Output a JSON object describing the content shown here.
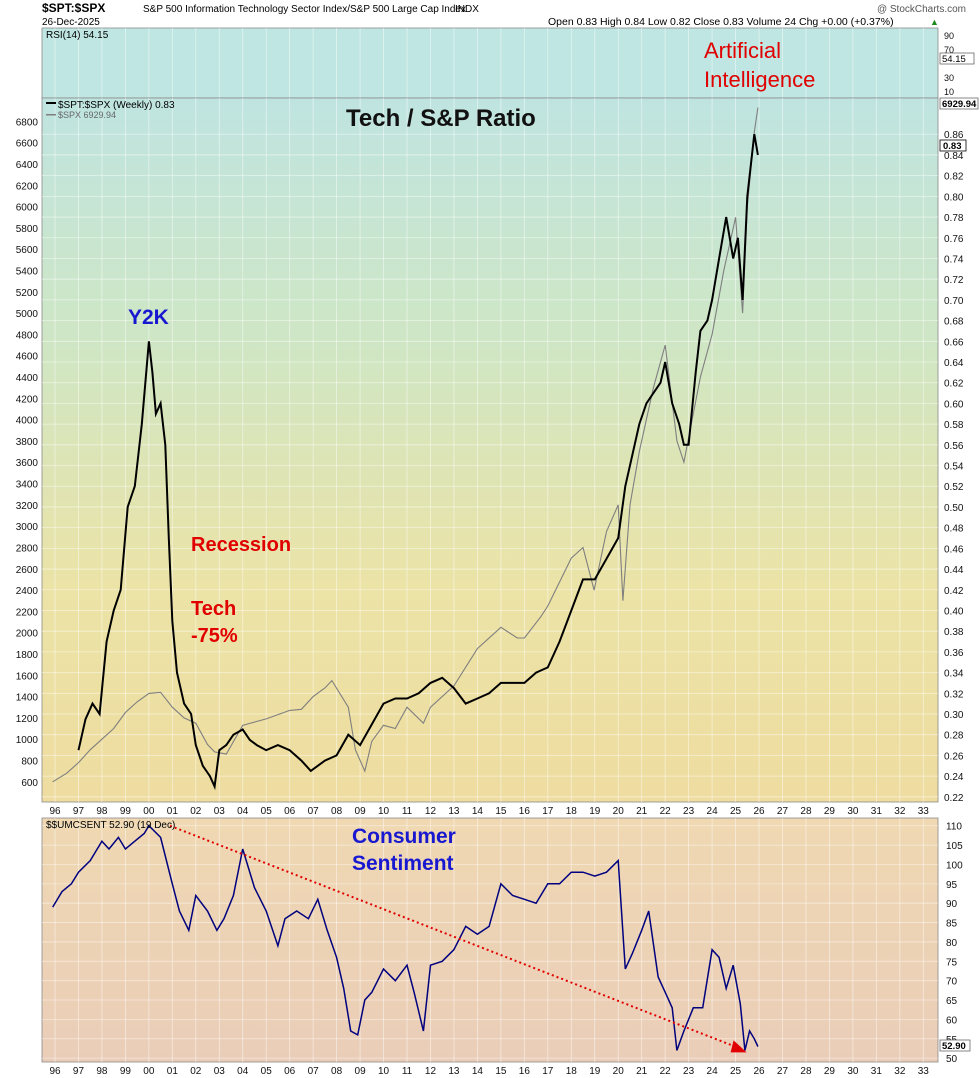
{
  "header": {
    "symbol": "$SPT:$SPX",
    "description": "S&P 500 Information Technology Sector Index/S&P 500 Large Cap Index",
    "exchange": "INDX",
    "date": "26-Dec-2025",
    "quote": "Open 0.83  High 0.84  Low 0.82  Close 0.83  Volume 24  Chg +0.00 (+0.37%)",
    "quote_arrow": "▲",
    "watermark": "@ StockCharts.com"
  },
  "colors": {
    "ratio_line": "#000000",
    "spx_line": "#7f7f7f",
    "sentiment_line": "#00007f",
    "trend_line": "#e00000",
    "annotation_red": "#e00000",
    "annotation_blue": "#1818d0"
  },
  "annotations": {
    "title": "Tech / S&P Ratio",
    "y2k": "Y2K",
    "recession": "Recession",
    "tech_line1": "Tech",
    "tech_line2": "-75%",
    "ai_line1": "Artificial",
    "ai_line2": "Intelligence",
    "sentiment_line1": "Consumer",
    "sentiment_line2": "Sentiment"
  },
  "x_axis": {
    "tick_labels": [
      "96",
      "97",
      "98",
      "99",
      "00",
      "01",
      "02",
      "03",
      "04",
      "05",
      "06",
      "07",
      "08",
      "09",
      "10",
      "11",
      "12",
      "13",
      "14",
      "15",
      "16",
      "17",
      "18",
      "19",
      "20",
      "21",
      "22",
      "23",
      "24",
      "25",
      "26",
      "27",
      "28",
      "29",
      "30",
      "31",
      "32",
      "33"
    ]
  },
  "chart_data": [
    {
      "type": "line",
      "panel": "rsi",
      "legend": "RSI(14) 54.15",
      "last_value_label": "54.15",
      "ylim": [
        0,
        100
      ],
      "right_tick_labels": [
        "90",
        "70",
        "30",
        "10"
      ]
    },
    {
      "type": "line",
      "panel": "main",
      "title": "Tech / S&P Ratio",
      "legend": [
        "$SPT:$SPX (Weekly) 0.83",
        "$SPX 6929.94"
      ],
      "right_axis": {
        "ylim": [
          0.215,
          0.895
        ],
        "tick_labels": [
          "0.86",
          "0.84",
          "0.82",
          "0.80",
          "0.78",
          "0.76",
          "0.74",
          "0.72",
          "0.70",
          "0.68",
          "0.66",
          "0.64",
          "0.62",
          "0.60",
          "0.58",
          "0.56",
          "0.54",
          "0.52",
          "0.50",
          "0.48",
          "0.46",
          "0.44",
          "0.42",
          "0.40",
          "0.38",
          "0.36",
          "0.34",
          "0.32",
          "0.30",
          "0.28",
          "0.26",
          "0.24",
          "0.22"
        ],
        "last_value_label": "0.83"
      },
      "left_axis": {
        "ylim": [
          410,
          7020
        ],
        "tick_labels": [
          "6800",
          "6600",
          "6400",
          "6200",
          "6000",
          "5800",
          "5600",
          "5400",
          "5200",
          "5000",
          "4800",
          "4600",
          "4400",
          "4200",
          "4000",
          "3800",
          "3600",
          "3400",
          "3200",
          "3000",
          "2800",
          "2600",
          "2400",
          "2200",
          "2000",
          "1800",
          "1600",
          "1400",
          "1200",
          "1000",
          "800",
          "600"
        ],
        "last_value_label": "6929.94"
      },
      "series": [
        {
          "name": "$SPT:$SPX (Weekly) 0.83",
          "axis": "right",
          "x": [
            1997.0,
            1997.3,
            1997.6,
            1997.9,
            1998.2,
            1998.5,
            1998.8,
            1999.1,
            1999.4,
            1999.7,
            2000.0,
            2000.15,
            2000.3,
            2000.5,
            2000.7,
            2000.85,
            2001.0,
            2001.2,
            2001.5,
            2001.8,
            2002.0,
            2002.3,
            2002.6,
            2002.8,
            2003.0,
            2003.3,
            2003.6,
            2004.0,
            2004.3,
            2004.6,
            2005.0,
            2005.5,
            2006.0,
            2006.5,
            2006.9,
            2007.5,
            2008.0,
            2008.5,
            2009.0,
            2009.5,
            2010.0,
            2010.5,
            2011.0,
            2011.5,
            2012.0,
            2012.5,
            2013.0,
            2013.5,
            2014.0,
            2014.5,
            2015.0,
            2015.5,
            2016.0,
            2016.5,
            2017.0,
            2017.5,
            2018.0,
            2018.5,
            2019.0,
            2019.5,
            2020.0,
            2020.3,
            2020.6,
            2020.9,
            2021.2,
            2021.5,
            2021.8,
            2022.0,
            2022.3,
            2022.6,
            2022.8,
            2023.0,
            2023.3,
            2023.5,
            2023.8,
            2024.0,
            2024.3,
            2024.6,
            2024.9,
            2025.1,
            2025.3,
            2025.5,
            2025.8,
            2025.95
          ],
          "values": [
            0.265,
            0.295,
            0.31,
            0.3,
            0.37,
            0.4,
            0.42,
            0.5,
            0.52,
            0.58,
            0.66,
            0.63,
            0.59,
            0.6,
            0.56,
            0.47,
            0.39,
            0.34,
            0.31,
            0.3,
            0.27,
            0.25,
            0.24,
            0.23,
            0.265,
            0.27,
            0.28,
            0.285,
            0.275,
            0.27,
            0.265,
            0.27,
            0.265,
            0.255,
            0.245,
            0.255,
            0.26,
            0.28,
            0.27,
            0.29,
            0.31,
            0.315,
            0.315,
            0.32,
            0.33,
            0.335,
            0.325,
            0.31,
            0.315,
            0.32,
            0.33,
            0.33,
            0.33,
            0.34,
            0.345,
            0.37,
            0.4,
            0.43,
            0.43,
            0.45,
            0.47,
            0.52,
            0.55,
            0.58,
            0.6,
            0.61,
            0.62,
            0.64,
            0.6,
            0.58,
            0.56,
            0.56,
            0.63,
            0.67,
            0.68,
            0.7,
            0.74,
            0.78,
            0.74,
            0.76,
            0.7,
            0.8,
            0.86,
            0.84
          ]
        },
        {
          "name": "$SPX 6929.94",
          "axis": "left",
          "x": [
            1995.9,
            1996.5,
            1997.0,
            1997.5,
            1998.0,
            1998.5,
            1999.0,
            1999.5,
            2000.0,
            2000.5,
            2001.0,
            2001.5,
            2002.0,
            2002.5,
            2002.8,
            2003.3,
            2004.0,
            2005.0,
            2006.0,
            2006.5,
            2007.0,
            2007.5,
            2007.8,
            2008.5,
            2008.8,
            2009.2,
            2009.5,
            2010.0,
            2010.5,
            2011.0,
            2011.7,
            2012.0,
            2013.0,
            2014.0,
            2015.0,
            2015.7,
            2016.0,
            2016.7,
            2017.0,
            2018.0,
            2018.5,
            2018.97,
            2019.5,
            2020.0,
            2020.2,
            2020.5,
            2020.9,
            2021.5,
            2022.0,
            2022.5,
            2022.8,
            2023.5,
            2024.0,
            2024.5,
            2025.0,
            2025.3,
            2025.5,
            2025.8,
            2025.95
          ],
          "values": [
            600,
            680,
            780,
            900,
            1000,
            1100,
            1250,
            1350,
            1430,
            1440,
            1300,
            1200,
            1150,
            950,
            880,
            860,
            1130,
            1190,
            1270,
            1280,
            1400,
            1480,
            1550,
            1300,
            900,
            700,
            980,
            1130,
            1100,
            1300,
            1150,
            1300,
            1500,
            1850,
            2050,
            1950,
            1950,
            2150,
            2250,
            2700,
            2800,
            2400,
            2950,
            3200,
            2300,
            3200,
            3700,
            4300,
            4700,
            3800,
            3600,
            4400,
            4800,
            5400,
            5900,
            5000,
            6000,
            6700,
            6930
          ]
        }
      ]
    },
    {
      "type": "line",
      "panel": "sentiment",
      "legend": "$$UMCSENT 52.90 (19 Dec)",
      "last_value_label": "52.90",
      "ylim": [
        49,
        112
      ],
      "right_tick_labels": [
        "110",
        "105",
        "100",
        "95",
        "90",
        "85",
        "80",
        "75",
        "70",
        "65",
        "60",
        "55",
        "50"
      ],
      "series": [
        {
          "name": "$$UMCSENT 52.90 (19 Dec)",
          "x": [
            1995.9,
            1996.3,
            1996.7,
            1997.0,
            1997.5,
            1998.0,
            1998.3,
            1998.7,
            1999.0,
            1999.4,
            1999.8,
            2000.0,
            2000.5,
            2001.0,
            2001.3,
            2001.7,
            2002.0,
            2002.5,
            2002.9,
            2003.2,
            2003.6,
            2004.0,
            2004.5,
            2005.0,
            2005.5,
            2005.8,
            2006.3,
            2006.8,
            2007.2,
            2007.6,
            2008.0,
            2008.3,
            2008.6,
            2008.9,
            2009.2,
            2009.5,
            2010.0,
            2010.5,
            2011.0,
            2011.3,
            2011.7,
            2012.0,
            2012.5,
            2013.0,
            2013.5,
            2014.0,
            2014.5,
            2015.0,
            2015.5,
            2016.0,
            2016.5,
            2017.0,
            2017.5,
            2018.0,
            2018.5,
            2019.0,
            2019.5,
            2020.0,
            2020.3,
            2020.6,
            2021.0,
            2021.3,
            2021.7,
            2022.0,
            2022.3,
            2022.5,
            2022.8,
            2023.2,
            2023.6,
            2024.0,
            2024.3,
            2024.6,
            2024.9,
            2025.2,
            2025.4,
            2025.6,
            2025.8,
            2025.95
          ],
          "values": [
            89,
            93,
            95,
            98,
            101,
            106,
            104,
            107,
            104,
            106,
            108,
            110,
            107,
            95,
            88,
            83,
            92,
            88,
            83,
            86,
            92,
            104,
            94,
            88,
            79,
            86,
            88,
            86,
            91,
            83,
            76,
            68,
            57,
            56,
            65,
            67,
            73,
            70,
            74,
            67,
            57,
            74,
            75,
            78,
            84,
            82,
            84,
            95,
            92,
            91,
            90,
            95,
            95,
            98,
            98,
            97,
            98,
            101,
            73,
            77,
            83,
            88,
            71,
            67,
            63,
            52,
            57,
            63,
            63,
            78,
            76,
            68,
            74,
            64,
            52,
            57,
            55,
            53
          ]
        }
      ],
      "trend_line": {
        "x": [
          2000.9,
          2025.3
        ],
        "values": [
          110,
          52
        ]
      }
    }
  ]
}
